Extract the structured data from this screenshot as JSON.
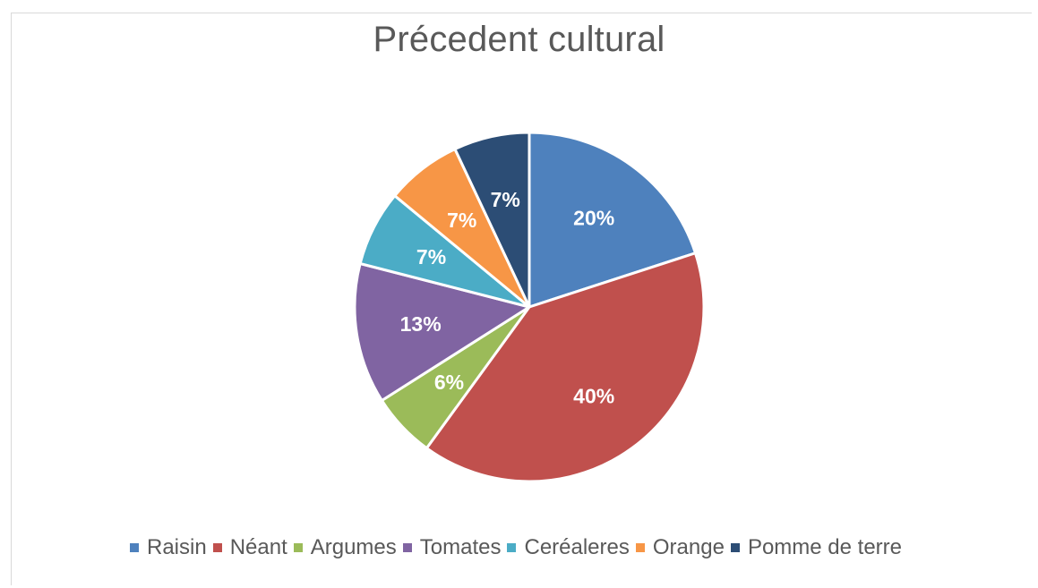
{
  "chart_data": {
    "type": "pie",
    "title": "Précedent cultural",
    "legend_position": "bottom",
    "categories": [
      "Raisin",
      "Néant",
      "Argumes",
      "Tomates",
      "Ceréaleres",
      "Orange",
      "Pomme de terre"
    ],
    "values": [
      20,
      40,
      6,
      13,
      7,
      7,
      7
    ],
    "data_labels": [
      "20%",
      "40%",
      "6%",
      "13%",
      "7%",
      "7%",
      "7%"
    ],
    "colors": [
      "#4e81bd",
      "#c0504d",
      "#9bbb59",
      "#8064a2",
      "#4bacc6",
      "#f79646",
      "#2c4d75"
    ]
  }
}
